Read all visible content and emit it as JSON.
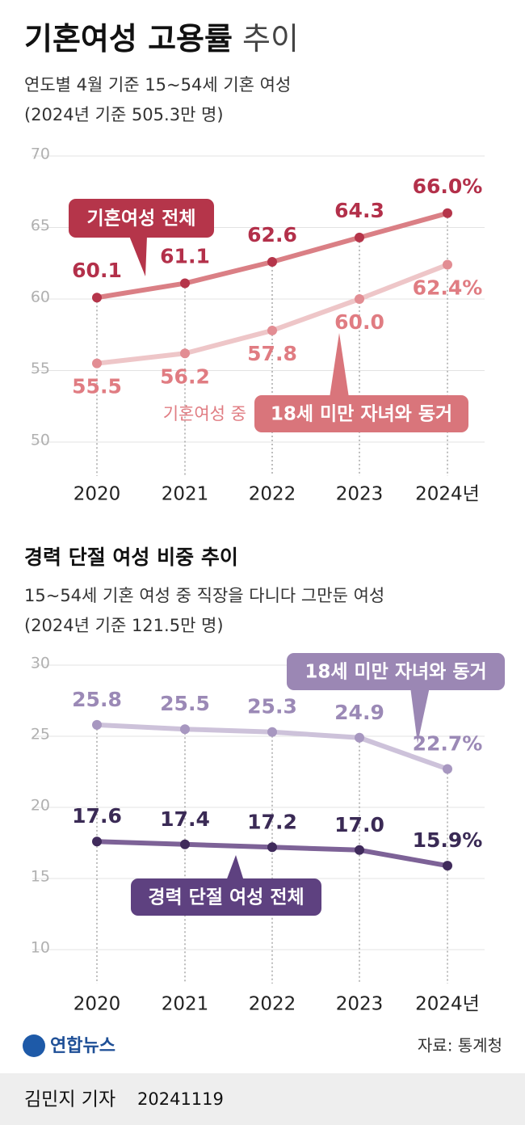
{
  "header": {
    "title": "기혼여성 고용률",
    "title_suffix": "추이"
  },
  "chart_data": [
    {
      "type": "line",
      "subtitle": [
        "연도별 4월 기준 15~54세 기혼 여성",
        "(2024년 기준 505.3만 명)"
      ],
      "categories": [
        "2020",
        "2021",
        "2022",
        "2023",
        "2024년"
      ],
      "ylim": [
        50,
        70
      ],
      "yticks": [
        50,
        55,
        60,
        65,
        70
      ],
      "grid": true,
      "series": [
        {
          "name": "기혼여성 전체",
          "color": "#da7f85",
          "marker_color": "#b5354a",
          "label_color": "#b3304a",
          "legend_color": "#b5354a",
          "values": [
            60.1,
            61.1,
            62.6,
            64.3,
            66.0
          ],
          "value_labels": [
            "60.1",
            "61.1",
            "62.6",
            "64.3",
            "66.0%"
          ]
        },
        {
          "name": "18세 미만 자녀와 동거",
          "name_prefix": "기혼여성 중",
          "color": "#eec6c8",
          "marker_color": "#e28d93",
          "label_color": "#e07c82",
          "legend_color": "#d9757b",
          "values": [
            55.5,
            56.2,
            57.8,
            60.0,
            62.4
          ],
          "value_labels": [
            "55.5",
            "56.2",
            "57.8",
            "60.0",
            "62.4%"
          ]
        }
      ]
    },
    {
      "type": "line",
      "title": "경력 단절 여성 비중 추이",
      "subtitle": [
        "15~54세 기혼 여성 중 직장을 다니다 그만둔 여성",
        "(2024년 기준 121.5만 명)"
      ],
      "categories": [
        "2020",
        "2021",
        "2022",
        "2023",
        "2024년"
      ],
      "ylim": [
        10,
        30
      ],
      "yticks": [
        10,
        15,
        20,
        25,
        30
      ],
      "grid": true,
      "series": [
        {
          "name": "18세 미만 자녀와 동거",
          "color": "#cdc2da",
          "marker_color": "#a797c0",
          "label_color": "#9b89b6",
          "legend_color": "#9b87b4",
          "values": [
            25.8,
            25.5,
            25.3,
            24.9,
            22.7
          ],
          "value_labels": [
            "25.8",
            "25.5",
            "25.3",
            "24.9",
            "22.7%"
          ]
        },
        {
          "name": "경력 단절 여성 전체",
          "color": "#7d6297",
          "marker_color": "#402b5c",
          "label_color": "#3a2a55",
          "legend_color": "#5e4180",
          "values": [
            17.6,
            17.4,
            17.2,
            17.0,
            15.9
          ],
          "value_labels": [
            "17.6",
            "17.4",
            "17.2",
            "17.0",
            "15.9%"
          ]
        }
      ]
    }
  ],
  "footer": {
    "logo": "연합뉴스",
    "source": "자료: 통계청",
    "byline": "김민지 기자",
    "date": "20241119"
  }
}
